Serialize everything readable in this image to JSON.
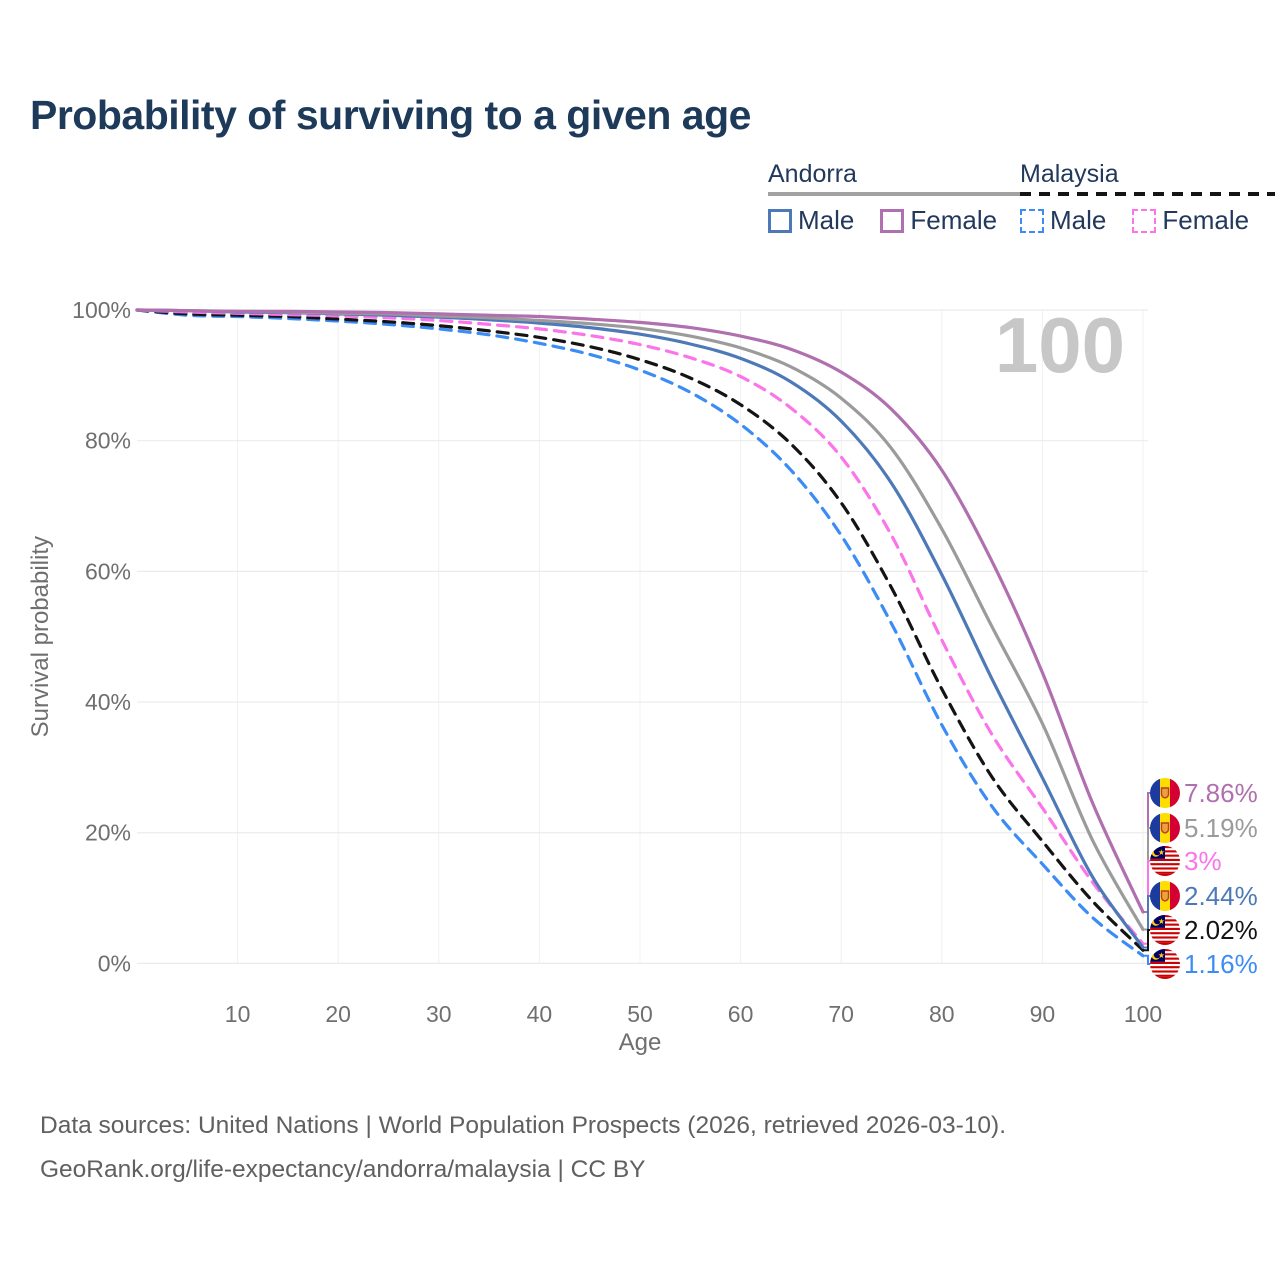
{
  "title": "Probability of surviving to a given age",
  "legend": {
    "groups": [
      {
        "name": "Andorra",
        "line_style": "solid",
        "line_color": "#a2a2a2",
        "items": [
          {
            "label": "Male",
            "color": "#4e79b8"
          },
          {
            "label": "Female",
            "color": "#b06fae"
          }
        ]
      },
      {
        "name": "Malaysia",
        "line_style": "dashed",
        "line_color": "#141414",
        "items": [
          {
            "label": "Male",
            "color": "#3c8cf5"
          },
          {
            "label": "Female",
            "color": "#fb74ea"
          }
        ]
      }
    ]
  },
  "chart_data": {
    "type": "line",
    "x": [
      0,
      5,
      10,
      15,
      20,
      25,
      30,
      35,
      40,
      45,
      50,
      55,
      60,
      65,
      70,
      75,
      80,
      85,
      90,
      95,
      100
    ],
    "xlabel": "Age",
    "ylabel": "Survival probability",
    "x_ticks": [
      10,
      20,
      30,
      40,
      50,
      60,
      70,
      80,
      90,
      100
    ],
    "y_ticks": [
      0,
      20,
      40,
      60,
      80,
      100
    ],
    "y_tick_suffix": "%",
    "xlim": [
      0,
      100
    ],
    "ylim": [
      0,
      100
    ],
    "grid": true,
    "watermark": "100",
    "series": [
      {
        "name": "Malaysia Male",
        "country": "Malaysia",
        "sex": "Male",
        "color": "#3c8cf5",
        "dash": true,
        "flag": "malaysia",
        "end_label": "1.16%",
        "final": 1.16,
        "values": [
          100,
          99.2,
          99,
          98.7,
          98.3,
          97.8,
          97.1,
          96.2,
          94.9,
          93.2,
          90.8,
          87.4,
          82.5,
          75.5,
          65.5,
          52,
          36.5,
          24,
          15.2,
          7,
          1.16
        ]
      },
      {
        "name": "Malaysia (both sexes)",
        "country": "Malaysia",
        "sex": "Both",
        "color": "#141414",
        "dash": true,
        "flag": "malaysia",
        "end_label": "2.02%",
        "final": 2.02,
        "values": [
          100,
          99.4,
          99.2,
          99,
          98.6,
          98.2,
          97.6,
          96.8,
          95.8,
          94.4,
          92.4,
          89.6,
          85.5,
          79.5,
          70.5,
          57.5,
          42,
          28.5,
          18.7,
          9.5,
          2.02
        ]
      },
      {
        "name": "Malaysia Female",
        "country": "Malaysia",
        "sex": "Female",
        "color": "#fb74ea",
        "dash": true,
        "flag": "malaysia",
        "end_label": "3%",
        "final": 3,
        "values": [
          100,
          99.7,
          99.5,
          99.3,
          99.1,
          98.8,
          98.4,
          97.8,
          97.1,
          96.1,
          94.7,
          92.7,
          89.8,
          85,
          77.5,
          65.5,
          49.5,
          35,
          23.8,
          12.4,
          3
        ]
      },
      {
        "name": "Andorra Male",
        "country": "Andorra",
        "sex": "Male",
        "color": "#4e79b8",
        "dash": false,
        "flag": "andorra",
        "end_label": "2.44%",
        "final": 2.44,
        "values": [
          100,
          99.9,
          99.7,
          99.6,
          99.4,
          99.2,
          98.9,
          98.5,
          98,
          97.3,
          96.3,
          94.8,
          92.6,
          89,
          83,
          73.5,
          59.5,
          43.5,
          28.4,
          13.2,
          2.44
        ]
      },
      {
        "name": "Andorra (both sexes)",
        "country": "Andorra",
        "sex": "Both",
        "color": "#9b9b9b",
        "dash": false,
        "flag": "andorra",
        "end_label": "5.19%",
        "final": 5.19,
        "values": [
          100,
          99.9,
          99.8,
          99.7,
          99.5,
          99.4,
          99.1,
          98.8,
          98.4,
          97.9,
          97.2,
          96,
          94.2,
          91.3,
          86.5,
          78.8,
          66.5,
          51.5,
          36.7,
          18.8,
          5.19
        ]
      },
      {
        "name": "Andorra Female",
        "country": "Andorra",
        "sex": "Female",
        "color": "#b06fae",
        "dash": false,
        "flag": "andorra",
        "end_label": "7.86%",
        "final": 7.86,
        "values": [
          100,
          99.9,
          99.8,
          99.8,
          99.7,
          99.6,
          99.4,
          99.2,
          99,
          98.6,
          98.1,
          97.3,
          96,
          94,
          90.5,
          84.8,
          75.5,
          61.5,
          44.5,
          24.5,
          7.86
        ]
      }
    ]
  },
  "footer": {
    "line1": "Data sources: United Nations | World Population Prospects (2026, retrieved 2026-03-10).",
    "line2": "GeoRank.org/life-expectancy/andorra/malaysia | CC BY"
  }
}
